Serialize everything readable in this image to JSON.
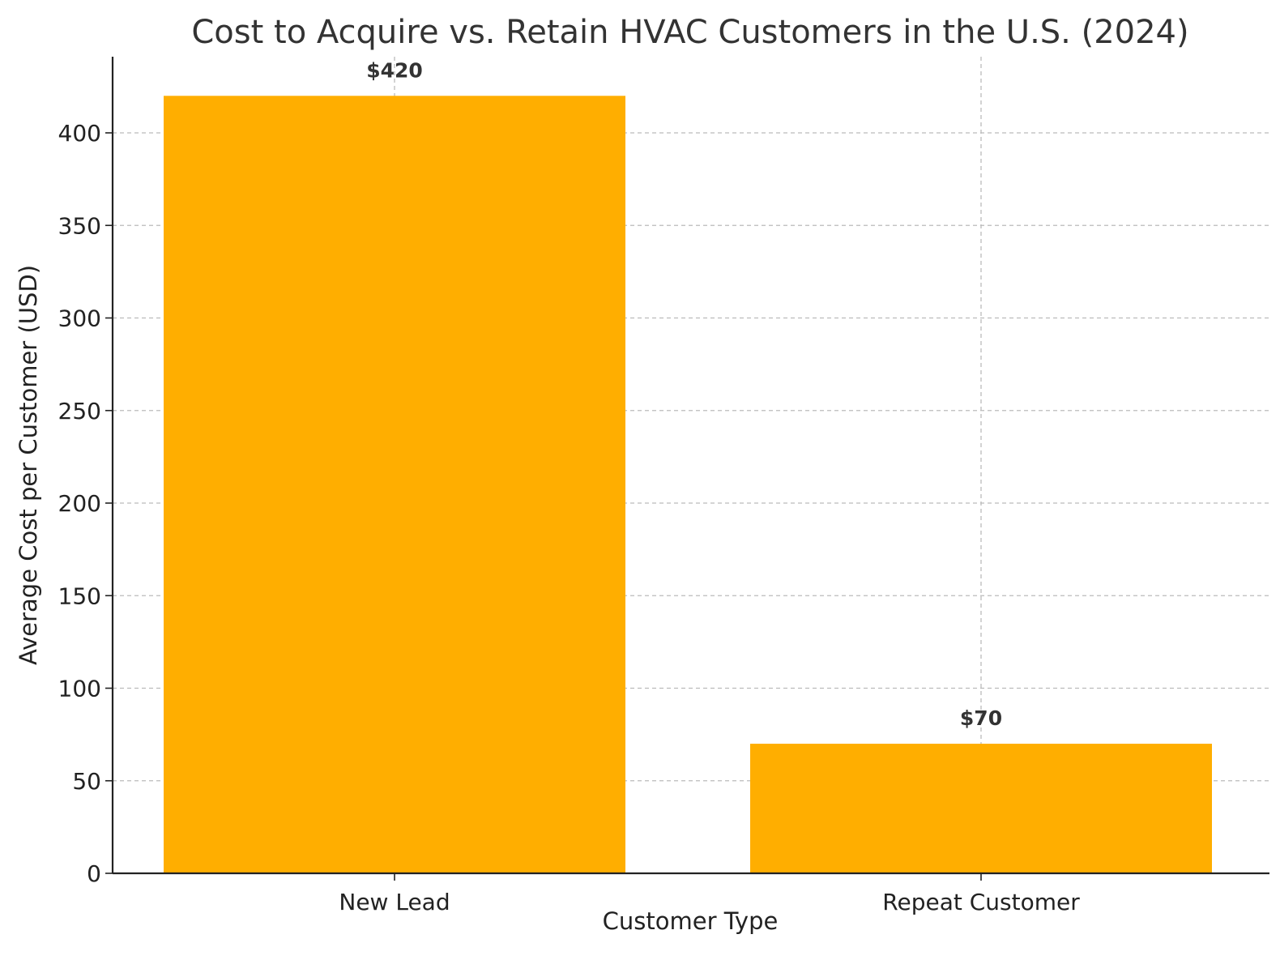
{
  "chart_data": {
    "type": "bar",
    "title": "Cost to Acquire vs. Retain HVAC Customers in the U.S. (2024)",
    "xlabel": "Customer Type",
    "ylabel": "Average Cost per Customer (USD)",
    "categories": [
      "New Lead",
      "Repeat Customer"
    ],
    "values": [
      420,
      70
    ],
    "data_labels": [
      "$420",
      "$70"
    ],
    "ylim": [
      0,
      440
    ],
    "yticks": [
      0,
      50,
      100,
      150,
      200,
      250,
      300,
      350,
      400
    ],
    "grid": true,
    "bar_color": "#FFAE00"
  }
}
